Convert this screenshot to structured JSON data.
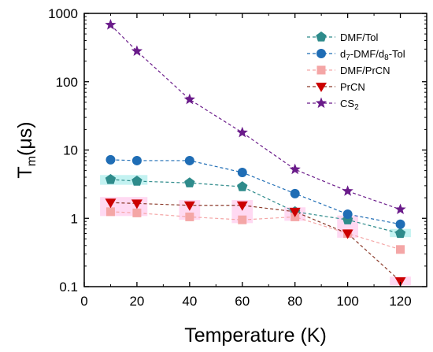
{
  "chart_data": {
    "type": "scatter",
    "x_axis": {
      "label": "Temperature (K)",
      "min": 0,
      "max": 130,
      "ticks": [
        0,
        20,
        40,
        60,
        80,
        100,
        120
      ],
      "tick_labels": [
        "0",
        "20",
        "40",
        "60",
        "80",
        "100",
        "120"
      ]
    },
    "y_axis": {
      "label_main": "T",
      "label_sub": "m",
      "label_rest": "(μs)",
      "scale": "log",
      "min": 0.1,
      "max": 1000,
      "ticks": [
        0.1,
        1,
        10,
        100,
        1000
      ],
      "tick_labels": [
        "0.1",
        "1",
        "10",
        "100",
        "1000"
      ]
    },
    "grid": false,
    "legend_position": "top-right",
    "series": [
      {
        "name": "DMF/Tol",
        "marker": "pentagon",
        "color": "#2e8b8b",
        "line_style": "dashed",
        "x": [
          10,
          20,
          40,
          60,
          80,
          100,
          120
        ],
        "y": [
          3.7,
          3.5,
          3.3,
          2.9,
          1.25,
          0.95,
          0.6
        ]
      },
      {
        "name": "d7-DMF/d8-Tol",
        "name_parts": [
          "d",
          "7",
          "-DMF/d",
          "8",
          "-Tol"
        ],
        "marker": "circle",
        "color": "#1f6db5",
        "line_style": "dashed",
        "x": [
          10,
          20,
          40,
          60,
          80,
          100,
          120
        ],
        "y": [
          7.2,
          7.0,
          7.0,
          4.7,
          2.3,
          1.15,
          0.82
        ]
      },
      {
        "name": "DMF/PrCN",
        "marker": "square",
        "color": "#f4a6a6",
        "line_style": "dashed",
        "x": [
          10,
          20,
          40,
          60,
          80,
          100,
          120
        ],
        "y": [
          1.25,
          1.2,
          1.05,
          0.95,
          1.05,
          0.6,
          0.35
        ]
      },
      {
        "name": "PrCN",
        "marker": "triangle-down",
        "color": "#cc0000",
        "line_color": "#8b3a2a",
        "line_style": "dashed",
        "x": [
          10,
          20,
          40,
          60,
          80,
          100,
          120
        ],
        "y": [
          1.7,
          1.65,
          1.55,
          1.55,
          1.25,
          0.6,
          0.12
        ]
      },
      {
        "name": "CS2",
        "name_parts": [
          "CS",
          "2"
        ],
        "marker": "star",
        "color": "#6a1b8a",
        "line_style": "dashed",
        "x": [
          10,
          20,
          40,
          60,
          80,
          100,
          120
        ],
        "y": [
          680,
          280,
          55,
          18,
          5.2,
          2.5,
          1.35
        ]
      }
    ],
    "highlights": [
      {
        "x": [
          6,
          24
        ],
        "y": [
          3.1,
          4.3
        ],
        "color": "#b9f0ee"
      },
      {
        "x": [
          6,
          24
        ],
        "y": [
          1.08,
          2.05
        ],
        "color": "#ffd2f0"
      },
      {
        "x": [
          36,
          44
        ],
        "y": [
          0.95,
          1.85
        ],
        "color": "#ffd2f0"
      },
      {
        "x": [
          56,
          64
        ],
        "y": [
          0.85,
          1.85
        ],
        "color": "#ffd2f0"
      },
      {
        "x": [
          76,
          84
        ],
        "y": [
          0.92,
          1.45
        ],
        "color": "#ffd2f0"
      },
      {
        "x": [
          96,
          104
        ],
        "y": [
          0.52,
          1.1
        ],
        "color": "#ffd2f0"
      },
      {
        "x": [
          116,
          124
        ],
        "y": [
          0.105,
          0.14
        ],
        "color": "#ffd2f0"
      },
      {
        "x": [
          116,
          124
        ],
        "y": [
          0.53,
          0.7
        ],
        "color": "#b9f0ee"
      }
    ]
  }
}
